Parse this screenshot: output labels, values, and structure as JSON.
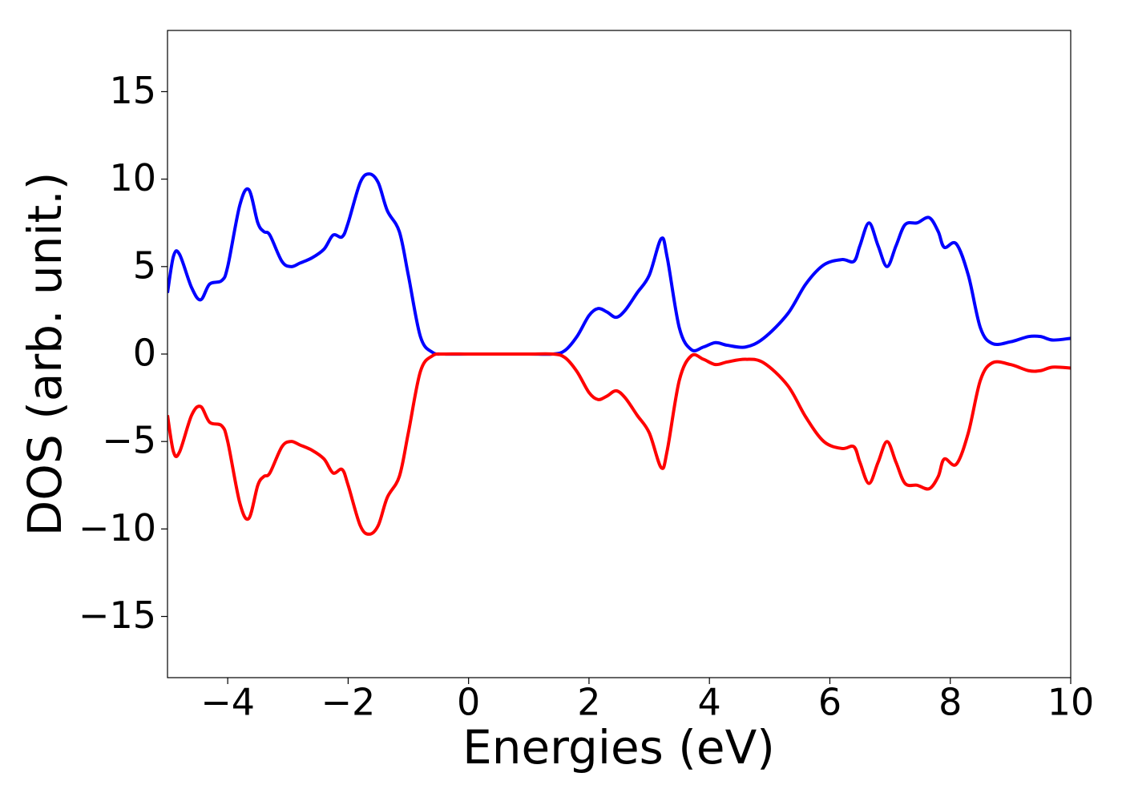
{
  "chart_data": {
    "type": "line",
    "xlabel": "Energies (eV)",
    "ylabel": "DOS (arb. unit.)",
    "xlim": [
      -5,
      10
    ],
    "ylim": [
      -18.5,
      18.5
    ],
    "xticks": [
      {
        "value": -4,
        "label": "−4"
      },
      {
        "value": -2,
        "label": "−2"
      },
      0,
      2,
      4,
      6,
      8,
      10
    ],
    "yticks": [
      {
        "value": -15,
        "label": "−15"
      },
      {
        "value": -10,
        "label": "−10"
      },
      {
        "value": -5,
        "label": "−5"
      },
      0,
      5,
      10,
      15
    ],
    "x": [
      -5,
      -4.9,
      -4.8,
      -4.6,
      -4.45,
      -4.3,
      -4.1,
      -4.0,
      -3.8,
      -3.65,
      -3.5,
      -3.4,
      -3.3,
      -3.1,
      -2.95,
      -2.8,
      -2.6,
      -2.4,
      -2.25,
      -2.1,
      -2.0,
      -1.8,
      -1.65,
      -1.5,
      -1.35,
      -1.15,
      -1.0,
      -0.8,
      -0.6,
      -0.4,
      0,
      0.5,
      1.0,
      1.4,
      1.6,
      1.8,
      2.0,
      2.15,
      2.3,
      2.45,
      2.6,
      2.8,
      3.0,
      3.2,
      3.3,
      3.5,
      3.7,
      3.9,
      4.1,
      4.3,
      4.6,
      4.9,
      5.3,
      5.6,
      5.9,
      6.2,
      6.4,
      6.5,
      6.65,
      6.8,
      6.95,
      7.1,
      7.25,
      7.45,
      7.65,
      7.8,
      7.9,
      8.1,
      8.3,
      8.5,
      8.7,
      9.0,
      9.3,
      9.5,
      9.7,
      10
    ],
    "series": [
      {
        "color": "#0000ff",
        "values": [
          3.5,
          5.6,
          5.7,
          3.8,
          3.1,
          4.0,
          4.2,
          5.0,
          8.5,
          9.4,
          7.5,
          7.0,
          6.8,
          5.3,
          5.0,
          5.2,
          5.5,
          6.0,
          6.8,
          6.7,
          7.5,
          9.8,
          10.3,
          9.8,
          8.2,
          7.0,
          4.5,
          1.0,
          0.1,
          0,
          0,
          0,
          0,
          0,
          0.2,
          1.0,
          2.2,
          2.6,
          2.4,
          2.1,
          2.5,
          3.5,
          4.5,
          6.6,
          5.5,
          1.5,
          0.25,
          0.4,
          0.65,
          0.5,
          0.4,
          0.9,
          2.3,
          4.0,
          5.1,
          5.4,
          5.3,
          6.2,
          7.5,
          6.2,
          5.0,
          6.2,
          7.4,
          7.5,
          7.8,
          7.0,
          6.1,
          6.3,
          4.5,
          1.5,
          0.6,
          0.7,
          1.0,
          1.0,
          0.8,
          0.9
        ]
      },
      {
        "color": "#ff0000",
        "values": [
          -3.5,
          -5.6,
          -5.6,
          -3.5,
          -3.0,
          -3.9,
          -4.1,
          -5.0,
          -8.5,
          -9.4,
          -7.5,
          -7.0,
          -6.8,
          -5.3,
          -5.0,
          -5.2,
          -5.5,
          -6.0,
          -6.8,
          -6.6,
          -7.5,
          -9.8,
          -10.3,
          -9.8,
          -8.2,
          -7.0,
          -4.5,
          -1.0,
          -0.1,
          0,
          0,
          0,
          0,
          0,
          -0.2,
          -1.0,
          -2.2,
          -2.6,
          -2.4,
          -2.1,
          -2.5,
          -3.5,
          -4.5,
          -6.5,
          -5.5,
          -1.5,
          -0.1,
          -0.3,
          -0.6,
          -0.45,
          -0.3,
          -0.5,
          -1.8,
          -3.6,
          -5.0,
          -5.4,
          -5.3,
          -6.2,
          -7.4,
          -6.2,
          -5.0,
          -6.2,
          -7.4,
          -7.5,
          -7.7,
          -7.0,
          -6.0,
          -6.3,
          -4.5,
          -1.5,
          -0.5,
          -0.6,
          -0.95,
          -0.95,
          -0.75,
          -0.8
        ]
      }
    ]
  }
}
